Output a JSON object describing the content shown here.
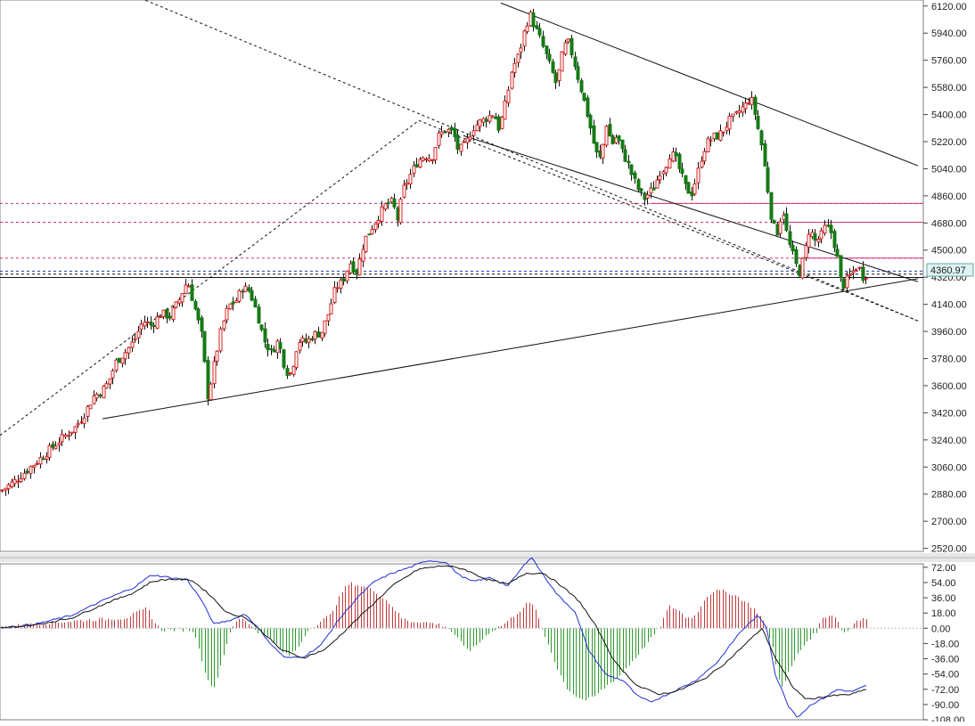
{
  "chart_data": [
    {
      "type": "candlestick",
      "panel": "price",
      "ylim": [
        2500,
        6160
      ],
      "yticks": [
        6120,
        5940,
        5760,
        5580,
        5400,
        5220,
        5040,
        4860,
        4680,
        4500,
        4320,
        4140,
        3960,
        3780,
        3600,
        3420,
        3240,
        3060,
        2880,
        2700,
        2520
      ],
      "ytick_labels": [
        "6120.00",
        "5940.00",
        "5760.00",
        "5580.00",
        "5400.00",
        "5220.00",
        "5040.00",
        "4860.00",
        "4680.00",
        "4500.00",
        "4320.00",
        "4140.00",
        "3960.00",
        "3780.00",
        "3600.00",
        "3420.00",
        "3240.00",
        "3060.00",
        "2880.00",
        "2700.00",
        "2520.00"
      ],
      "last_price_label": "4360.97",
      "colors": {
        "up": "#d62020",
        "down": "#157a15",
        "wick": "#111111",
        "grid": "#c8c8c8"
      },
      "close_path": [
        [
          0,
          2900
        ],
        [
          15,
          2960
        ],
        [
          30,
          3040
        ],
        [
          45,
          3120
        ],
        [
          60,
          3200
        ],
        [
          75,
          3280
        ],
        [
          85,
          3330
        ],
        [
          95,
          3420
        ],
        [
          105,
          3530
        ],
        [
          113,
          3560
        ],
        [
          121,
          3620
        ],
        [
          130,
          3760
        ],
        [
          140,
          3820
        ],
        [
          150,
          3900
        ],
        [
          160,
          4030
        ],
        [
          170,
          4000
        ],
        [
          180,
          4080
        ],
        [
          190,
          4060
        ],
        [
          200,
          4160
        ],
        [
          210,
          4300
        ],
        [
          218,
          4120
        ],
        [
          226,
          3930
        ],
        [
          233,
          3520
        ],
        [
          240,
          3740
        ],
        [
          248,
          3980
        ],
        [
          256,
          4130
        ],
        [
          264,
          4160
        ],
        [
          272,
          4250
        ],
        [
          280,
          4230
        ],
        [
          288,
          4080
        ],
        [
          296,
          3900
        ],
        [
          304,
          3820
        ],
        [
          312,
          3900
        ],
        [
          320,
          3700
        ],
        [
          326,
          3680
        ],
        [
          334,
          3900
        ],
        [
          344,
          3890
        ],
        [
          352,
          3940
        ],
        [
          360,
          3950
        ],
        [
          368,
          4080
        ],
        [
          376,
          4250
        ],
        [
          384,
          4290
        ],
        [
          392,
          4420
        ],
        [
          400,
          4350
        ],
        [
          408,
          4560
        ],
        [
          416,
          4640
        ],
        [
          424,
          4720
        ],
        [
          432,
          4800
        ],
        [
          440,
          4820
        ],
        [
          446,
          4700
        ],
        [
          452,
          4900
        ],
        [
          460,
          5000
        ],
        [
          468,
          5090
        ],
        [
          476,
          5130
        ],
        [
          484,
          5110
        ],
        [
          492,
          5260
        ],
        [
          500,
          5300
        ],
        [
          508,
          5280
        ],
        [
          514,
          5160
        ],
        [
          522,
          5200
        ],
        [
          530,
          5310
        ],
        [
          538,
          5350
        ],
        [
          546,
          5380
        ],
        [
          554,
          5410
        ],
        [
          560,
          5300
        ],
        [
          568,
          5500
        ],
        [
          574,
          5700
        ],
        [
          582,
          5800
        ],
        [
          588,
          5950
        ],
        [
          594,
          6070
        ],
        [
          600,
          5980
        ],
        [
          606,
          5900
        ],
        [
          612,
          5800
        ],
        [
          618,
          5700
        ],
        [
          624,
          5600
        ],
        [
          630,
          5780
        ],
        [
          636,
          5900
        ],
        [
          642,
          5790
        ],
        [
          648,
          5650
        ],
        [
          656,
          5470
        ],
        [
          662,
          5320
        ],
        [
          668,
          5150
        ],
        [
          674,
          5100
        ],
        [
          680,
          5340
        ],
        [
          686,
          5200
        ],
        [
          692,
          5260
        ],
        [
          698,
          5150
        ],
        [
          704,
          5080
        ],
        [
          710,
          4980
        ],
        [
          716,
          4900
        ],
        [
          722,
          4840
        ],
        [
          728,
          4880
        ],
        [
          734,
          4920
        ],
        [
          740,
          5020
        ],
        [
          746,
          5050
        ],
        [
          752,
          5150
        ],
        [
          758,
          5100
        ],
        [
          764,
          5000
        ],
        [
          770,
          4900
        ],
        [
          776,
          4880
        ],
        [
          782,
          5000
        ],
        [
          788,
          5150
        ],
        [
          794,
          5220
        ],
        [
          800,
          5250
        ],
        [
          806,
          5260
        ],
        [
          812,
          5300
        ],
        [
          818,
          5360
        ],
        [
          824,
          5380
        ],
        [
          830,
          5430
        ],
        [
          836,
          5460
        ],
        [
          842,
          5520
        ],
        [
          848,
          5380
        ],
        [
          854,
          5200
        ],
        [
          860,
          4950
        ],
        [
          866,
          4670
        ],
        [
          872,
          4620
        ],
        [
          878,
          4780
        ],
        [
          884,
          4560
        ],
        [
          890,
          4460
        ],
        [
          896,
          4340
        ],
        [
          902,
          4460
        ],
        [
          908,
          4650
        ],
        [
          914,
          4560
        ],
        [
          920,
          4580
        ],
        [
          926,
          4660
        ],
        [
          932,
          4620
        ],
        [
          938,
          4490
        ],
        [
          944,
          4250
        ],
        [
          950,
          4300
        ],
        [
          956,
          4350
        ],
        [
          962,
          4400
        ],
        [
          968,
          4320
        ],
        [
          974,
          4360
        ]
      ],
      "channel_lines_price": [
        {
          "x1": 0,
          "y1": 3270,
          "x2": 470,
          "y2": 5360,
          "x3": 1030,
          "y3": 4030,
          "style": "dashed"
        },
        {
          "x1": 130,
          "y1": 6240,
          "x2": 1030,
          "y2": 4030,
          "style": "dashed"
        },
        {
          "x1": 115,
          "y1": 3380,
          "x2": 1030,
          "y2": 4310,
          "style": "solid"
        },
        {
          "x1": 520,
          "y1": 5260,
          "x2": 1030,
          "y2": 4290,
          "style": "solid"
        },
        {
          "x1": 562,
          "y1": 6140,
          "x2": 1030,
          "y2": 5060,
          "style": "solid"
        }
      ],
      "hlines": [
        {
          "value": 4810,
          "x_from": 0,
          "color": "#cc3377",
          "style": "dashed"
        },
        {
          "value": 4685,
          "x_from": 0,
          "color": "#cc3377",
          "style": "dashed"
        },
        {
          "value": 4447,
          "x_from": 0,
          "color": "#cc3377",
          "style": "dashed"
        },
        {
          "value": 4360,
          "x_from": 0,
          "color": "#1e3ab5",
          "style": "dashed"
        },
        {
          "value": 4340,
          "x_from": 0,
          "color": "#111111",
          "style": "dashed"
        },
        {
          "value": 4318,
          "x_from": 0,
          "color": "#111111",
          "style": "solid"
        },
        {
          "value": 4810,
          "x_from": 730,
          "color": "#cc3377",
          "style": "solid"
        },
        {
          "value": 4685,
          "x_from": 870,
          "color": "#cc3377",
          "style": "solid"
        },
        {
          "value": 4447,
          "x_from": 895,
          "color": "#cc3377",
          "style": "solid"
        }
      ]
    },
    {
      "type": "macd",
      "panel": "indicator",
      "ylim": [
        -108,
        76
      ],
      "yticks": [
        72,
        54,
        36,
        18,
        0,
        -18,
        -36,
        -54,
        -72,
        -90,
        -108
      ],
      "ytick_labels": [
        "72.00",
        "54.00",
        "36.00",
        "18.00",
        "0.00",
        "-18.00",
        "-36.00",
        "-54.00",
        "-72.00",
        "-90.00",
        "-108.00"
      ],
      "colors": {
        "pos": "#c0393b",
        "neg": "#2e9a2e",
        "dif": "#1e2fd6",
        "dea": "#111111"
      },
      "dif": [
        [
          0,
          0
        ],
        [
          40,
          5
        ],
        [
          80,
          15
        ],
        [
          120,
          35
        ],
        [
          150,
          48
        ],
        [
          170,
          63
        ],
        [
          190,
          60
        ],
        [
          210,
          57
        ],
        [
          225,
          35
        ],
        [
          240,
          5
        ],
        [
          260,
          10
        ],
        [
          275,
          17
        ],
        [
          290,
          0
        ],
        [
          305,
          -20
        ],
        [
          320,
          -35
        ],
        [
          340,
          -34
        ],
        [
          360,
          -20
        ],
        [
          380,
          10
        ],
        [
          400,
          35
        ],
        [
          420,
          55
        ],
        [
          440,
          65
        ],
        [
          460,
          72
        ],
        [
          480,
          80
        ],
        [
          500,
          78
        ],
        [
          515,
          63
        ],
        [
          530,
          55
        ],
        [
          550,
          60
        ],
        [
          570,
          50
        ],
        [
          596,
          85
        ],
        [
          605,
          70
        ],
        [
          625,
          40
        ],
        [
          645,
          20
        ],
        [
          660,
          -25
        ],
        [
          680,
          -55
        ],
        [
          700,
          -62
        ],
        [
          715,
          -80
        ],
        [
          730,
          -87
        ],
        [
          755,
          -75
        ],
        [
          780,
          -62
        ],
        [
          805,
          -40
        ],
        [
          830,
          -5
        ],
        [
          850,
          15
        ],
        [
          860,
          2
        ],
        [
          870,
          -55
        ],
        [
          885,
          -92
        ],
        [
          895,
          -105
        ],
        [
          910,
          -90
        ],
        [
          925,
          -82
        ],
        [
          940,
          -72
        ],
        [
          955,
          -75
        ],
        [
          972,
          -68
        ]
      ],
      "dea": [
        [
          0,
          0
        ],
        [
          40,
          4
        ],
        [
          80,
          12
        ],
        [
          120,
          30
        ],
        [
          150,
          42
        ],
        [
          170,
          55
        ],
        [
          190,
          58
        ],
        [
          215,
          57
        ],
        [
          235,
          40
        ],
        [
          255,
          18
        ],
        [
          275,
          13
        ],
        [
          295,
          -5
        ],
        [
          315,
          -25
        ],
        [
          340,
          -35
        ],
        [
          365,
          -25
        ],
        [
          390,
          0
        ],
        [
          415,
          25
        ],
        [
          440,
          50
        ],
        [
          470,
          70
        ],
        [
          500,
          74
        ],
        [
          520,
          70
        ],
        [
          545,
          58
        ],
        [
          570,
          52
        ],
        [
          590,
          65
        ],
        [
          610,
          65
        ],
        [
          630,
          50
        ],
        [
          650,
          32
        ],
        [
          670,
          0
        ],
        [
          690,
          -40
        ],
        [
          715,
          -68
        ],
        [
          740,
          -78
        ],
        [
          760,
          -74
        ],
        [
          790,
          -60
        ],
        [
          815,
          -40
        ],
        [
          840,
          -15
        ],
        [
          855,
          0
        ],
        [
          870,
          -35
        ],
        [
          890,
          -70
        ],
        [
          905,
          -84
        ],
        [
          930,
          -80
        ],
        [
          955,
          -78
        ],
        [
          972,
          -72
        ]
      ],
      "histogram_envelope": [
        [
          0,
          2
        ],
        [
          100,
          10
        ],
        [
          140,
          12
        ],
        [
          165,
          24
        ],
        [
          172,
          8
        ],
        [
          180,
          -2
        ],
        [
          215,
          -2
        ],
        [
          222,
          -20
        ],
        [
          232,
          -62
        ],
        [
          240,
          -70
        ],
        [
          248,
          -40
        ],
        [
          256,
          -10
        ],
        [
          264,
          8
        ],
        [
          272,
          12
        ],
        [
          280,
          4
        ],
        [
          290,
          -5
        ],
        [
          305,
          -12
        ],
        [
          315,
          -28
        ],
        [
          325,
          -32
        ],
        [
          335,
          -22
        ],
        [
          345,
          -2
        ],
        [
          370,
          16
        ],
        [
          385,
          46
        ],
        [
          392,
          53
        ],
        [
          405,
          50
        ],
        [
          420,
          44
        ],
        [
          438,
          28
        ],
        [
          450,
          12
        ],
        [
          460,
          8
        ],
        [
          470,
          8
        ],
        [
          490,
          5
        ],
        [
          500,
          2
        ],
        [
          510,
          -8
        ],
        [
          520,
          -22
        ],
        [
          528,
          -26
        ],
        [
          538,
          -16
        ],
        [
          548,
          -5
        ],
        [
          565,
          5
        ],
        [
          582,
          20
        ],
        [
          592,
          30
        ],
        [
          600,
          25
        ],
        [
          606,
          2
        ],
        [
          615,
          -20
        ],
        [
          625,
          -48
        ],
        [
          635,
          -70
        ],
        [
          645,
          -80
        ],
        [
          655,
          -85
        ],
        [
          665,
          -82
        ],
        [
          680,
          -68
        ],
        [
          695,
          -56
        ],
        [
          708,
          -40
        ],
        [
          720,
          -25
        ],
        [
          730,
          -12
        ],
        [
          740,
          2
        ],
        [
          750,
          26
        ],
        [
          760,
          22
        ],
        [
          770,
          12
        ],
        [
          780,
          15
        ],
        [
          790,
          35
        ],
        [
          800,
          44
        ],
        [
          812,
          44
        ],
        [
          826,
          38
        ],
        [
          840,
          28
        ],
        [
          850,
          18
        ],
        [
          858,
          5
        ],
        [
          866,
          -20
        ],
        [
          872,
          -55
        ],
        [
          878,
          -70
        ],
        [
          885,
          -50
        ],
        [
          895,
          -30
        ],
        [
          905,
          -15
        ],
        [
          915,
          -5
        ],
        [
          922,
          12
        ],
        [
          930,
          16
        ],
        [
          937,
          14
        ],
        [
          945,
          -5
        ],
        [
          952,
          -3
        ],
        [
          960,
          10
        ],
        [
          972,
          12
        ]
      ]
    }
  ]
}
